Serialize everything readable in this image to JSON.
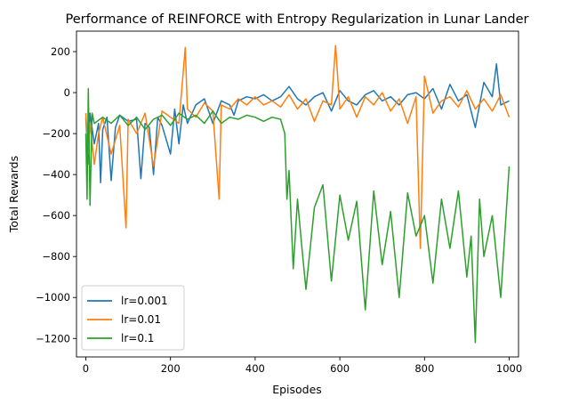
{
  "chart_data": {
    "type": "line",
    "title": "Performance of REINFORCE with Entropy Regularization in Lunar Lander",
    "xlabel": "Episodes",
    "ylabel": "Total Rewards",
    "xlim": [
      -22,
      1022
    ],
    "ylim": [
      -1290,
      300
    ],
    "xticks": [
      0,
      200,
      400,
      600,
      800,
      1000
    ],
    "yticks": [
      200,
      0,
      -200,
      -400,
      -600,
      -800,
      -1000,
      -1200
    ],
    "xtick_labels": [
      "0",
      "200",
      "400",
      "600",
      "800",
      "1000"
    ],
    "ytick_labels": [
      "200",
      "0",
      "−200",
      "−400",
      "−600",
      "−800",
      "−1000",
      "−1200"
    ],
    "grid": false,
    "legend_position": "lower-left",
    "series": [
      {
        "name": "lr=0.001",
        "color": "#1f77b4",
        "x": [
          0,
          5,
          10,
          20,
          30,
          35,
          40,
          50,
          60,
          70,
          80,
          100,
          120,
          130,
          140,
          150,
          160,
          170,
          180,
          200,
          210,
          220,
          230,
          240,
          260,
          280,
          300,
          320,
          340,
          350,
          360,
          380,
          400,
          420,
          440,
          460,
          480,
          500,
          520,
          540,
          560,
          580,
          600,
          620,
          640,
          660,
          680,
          700,
          720,
          740,
          760,
          780,
          800,
          820,
          840,
          860,
          880,
          900,
          920,
          940,
          960,
          970,
          980,
          1000
        ],
        "y": [
          -120,
          -350,
          -100,
          -250,
          -150,
          -440,
          -180,
          -120,
          -430,
          -170,
          -110,
          -140,
          -130,
          -420,
          -150,
          -170,
          -400,
          -120,
          -160,
          -300,
          -80,
          -250,
          -60,
          -150,
          -60,
          -30,
          -150,
          -40,
          -60,
          -110,
          -40,
          -20,
          -30,
          -10,
          -40,
          -20,
          30,
          -30,
          -60,
          -20,
          0,
          -90,
          10,
          -40,
          -60,
          -10,
          10,
          -40,
          -20,
          -60,
          -10,
          0,
          -30,
          20,
          -80,
          40,
          -40,
          -10,
          -170,
          50,
          -20,
          140,
          -60,
          -40
        ]
      },
      {
        "name": "lr=0.01",
        "color": "#ff7f0e",
        "x": [
          0,
          5,
          10,
          20,
          30,
          40,
          60,
          80,
          95,
          100,
          120,
          140,
          160,
          180,
          200,
          220,
          235,
          240,
          260,
          280,
          300,
          315,
          320,
          340,
          360,
          380,
          400,
          420,
          440,
          460,
          480,
          500,
          520,
          540,
          560,
          580,
          590,
          600,
          620,
          640,
          660,
          680,
          700,
          720,
          740,
          760,
          780,
          790,
          800,
          820,
          840,
          860,
          880,
          900,
          920,
          940,
          960,
          980,
          1000
        ],
        "y": [
          -100,
          -300,
          -150,
          -350,
          -200,
          -120,
          -300,
          -160,
          -660,
          -130,
          -200,
          -100,
          -360,
          -90,
          -120,
          -150,
          220,
          -80,
          -120,
          -50,
          -90,
          -520,
          -60,
          -80,
          -30,
          -60,
          -20,
          -60,
          -40,
          -70,
          -10,
          -80,
          -30,
          -140,
          -40,
          -60,
          230,
          -80,
          -20,
          -120,
          -20,
          -60,
          0,
          -90,
          -30,
          -150,
          -20,
          -760,
          80,
          -100,
          -40,
          -20,
          -70,
          10,
          -80,
          -30,
          -90,
          -10,
          -120
        ]
      },
      {
        "name": "lr=0.1",
        "color": "#2ca02c",
        "x": [
          0,
          3,
          6,
          10,
          15,
          20,
          40,
          60,
          80,
          100,
          120,
          140,
          160,
          180,
          200,
          220,
          240,
          260,
          280,
          300,
          320,
          340,
          360,
          380,
          400,
          420,
          440,
          460,
          470,
          475,
          480,
          490,
          500,
          510,
          520,
          540,
          560,
          580,
          600,
          620,
          640,
          660,
          680,
          700,
          720,
          740,
          760,
          780,
          800,
          820,
          840,
          860,
          880,
          900,
          910,
          920,
          930,
          940,
          960,
          980,
          1000
        ],
        "y": [
          -200,
          -520,
          20,
          -550,
          -100,
          -150,
          -120,
          -150,
          -110,
          -160,
          -120,
          -180,
          -130,
          -110,
          -160,
          -100,
          -130,
          -110,
          -150,
          -90,
          -150,
          -120,
          -130,
          -110,
          -120,
          -140,
          -120,
          -130,
          -200,
          -520,
          -380,
          -860,
          -520,
          -750,
          -960,
          -560,
          -450,
          -920,
          -500,
          -720,
          -530,
          -1060,
          -480,
          -840,
          -580,
          -1000,
          -490,
          -700,
          -600,
          -930,
          -520,
          -760,
          -480,
          -900,
          -700,
          -1220,
          -520,
          -800,
          -600,
          -1000,
          -360
        ]
      }
    ]
  }
}
